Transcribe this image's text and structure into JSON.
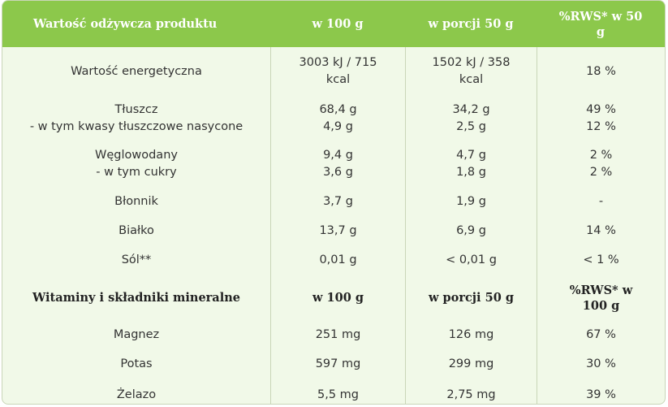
{
  "header": {
    "col1": "Wartość odżywcza produktu",
    "col2": "w 100 g",
    "col3": "w porcji 50 g",
    "col4": [
      "%RWS* w 50",
      "g"
    ]
  },
  "nutrition_rows": [
    {
      "name": [
        "Wartość energetyczna"
      ],
      "per100": [
        "3003 kJ / 715",
        "kcal"
      ],
      "per50": [
        "1502 kJ / 358",
        "kcal"
      ],
      "rws": [
        "18 %"
      ]
    },
    {
      "name": [
        "Tłuszcz",
        "- w tym kwasy tłuszczowe nasycone"
      ],
      "per100": [
        "68,4 g",
        "4,9 g"
      ],
      "per50": [
        "34,2 g",
        "2,5 g"
      ],
      "rws": [
        "49 %",
        "12 %"
      ]
    },
    {
      "name": [
        "Węglowodany",
        "- w tym cukry"
      ],
      "per100": [
        "9,4 g",
        "3,6 g"
      ],
      "per50": [
        "4,7 g",
        "1,8 g"
      ],
      "rws": [
        "2 %",
        "2 %"
      ]
    },
    {
      "name": [
        "Błonnik"
      ],
      "per100": [
        "3,7 g"
      ],
      "per50": [
        "1,9 g"
      ],
      "rws": [
        "-"
      ]
    },
    {
      "name": [
        "Białko"
      ],
      "per100": [
        "13,7 g"
      ],
      "per50": [
        "6,9 g"
      ],
      "rws": [
        "14 %"
      ]
    },
    {
      "name": [
        "Sól**"
      ],
      "per100": [
        "0,01 g"
      ],
      "per50": [
        "< 0,01 g"
      ],
      "rws": [
        "< 1 %"
      ]
    }
  ],
  "subheader": {
    "col1": "Witaminy i składniki mineralne",
    "col2": "w 100 g",
    "col3": "w porcji 50 g",
    "col4": [
      "%RWS* w",
      "100 g"
    ]
  },
  "mineral_rows": [
    {
      "name": "Magnez",
      "per100": "251 mg",
      "per50": "126 mg",
      "rws": "67 %"
    },
    {
      "name": "Potas",
      "per100": "597 mg",
      "per50": "299 mg",
      "rws": "30 %"
    },
    {
      "name": "Żelazo",
      "per100": "5,5 mg",
      "per50": "2,75 mg",
      "rws": "39 %"
    }
  ]
}
